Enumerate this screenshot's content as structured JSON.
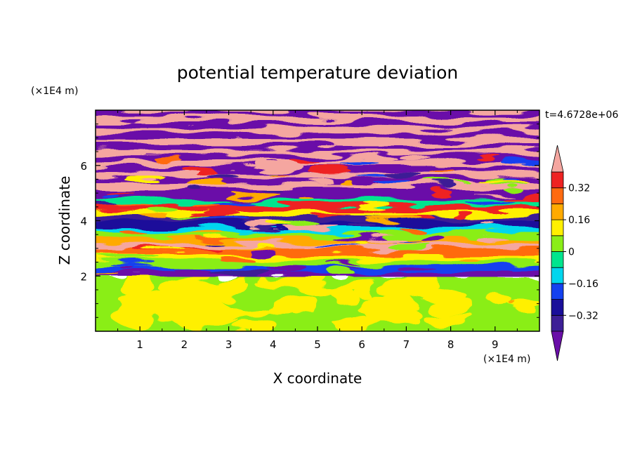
{
  "chart_data": {
    "type": "heatmap",
    "title": "potential temperature deviation",
    "xlabel": "X coordinate",
    "ylabel": "Z coordinate",
    "x_unit": "(×1E4 m)",
    "y_unit": "(×1E4 m)",
    "time_label": "t=4.6728e+06",
    "xlim": [
      0,
      10
    ],
    "ylim": [
      0,
      8
    ],
    "x_ticks": [
      1,
      2,
      3,
      4,
      5,
      6,
      7,
      8,
      9
    ],
    "y_ticks": [
      2,
      4,
      6
    ],
    "colorbar": {
      "levels": [
        -0.4,
        -0.32,
        -0.24,
        -0.16,
        -0.08,
        0,
        0.08,
        0.16,
        0.24,
        0.32,
        0.4
      ],
      "tick_labels": [
        "0.32",
        "0.16",
        "0",
        "−0.16",
        "−0.32"
      ],
      "tick_values": [
        0.32,
        0.16,
        0,
        -0.16,
        -0.32
      ],
      "colors": [
        "#3d1f96",
        "#1a0f9a",
        "#1441f0",
        "#00d6ee",
        "#00e58e",
        "#8aee18",
        "#fff000",
        "#ffaa00",
        "#ff6a10",
        "#ee2222"
      ],
      "under_color": "#6a0ea8",
      "over_color": "#f5a6a0",
      "extend": "both"
    },
    "regions": [
      {
        "z_range": [
          0,
          2
        ],
        "description_values": "mostly 0 to 0.08 with patches of 0.08-0.16"
      },
      {
        "z_range": [
          2,
          5
        ],
        "description_values": "alternating layers from below -0.4 to 0.4"
      },
      {
        "z_range": [
          5,
          8
        ],
        "description_values": "alternating bands of > 0.4 and < -0.4"
      }
    ]
  }
}
